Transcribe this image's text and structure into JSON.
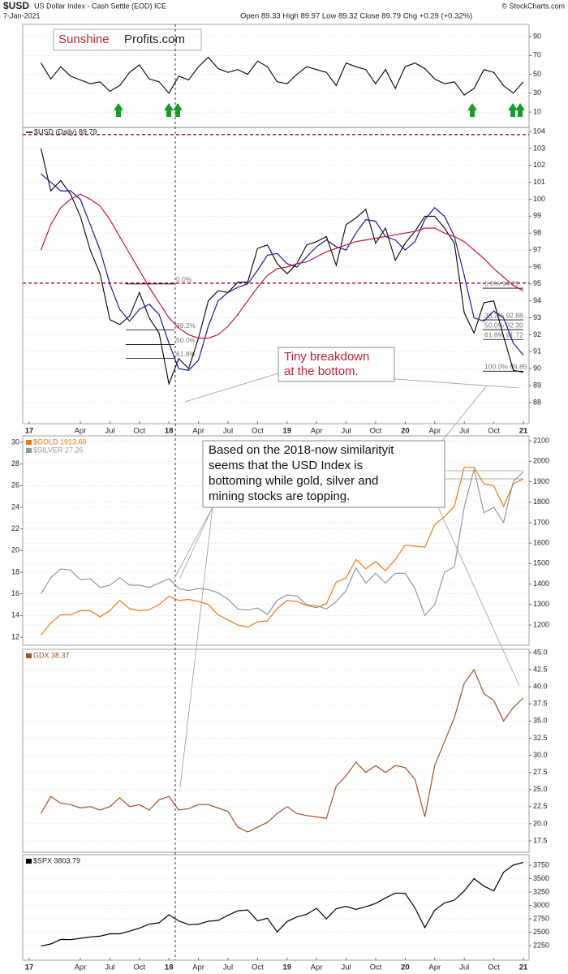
{
  "header": {
    "symbol": "$USD",
    "description": "US Dollar Index - Cash Settle (EOD) ICE",
    "date": "7-Jan-2021",
    "quote": "Open 89.33 High 89.97 Low 89.32 Close 89.79 Chg +0.29 (+0.32%)",
    "credit": "© StockCharts.com",
    "logo_a": "Sunshine",
    "logo_b": "Profits.com"
  },
  "chart_data": [
    {
      "type": "line",
      "ylim": [
        -6.3,
        102.9
      ],
      "yticks": [
        10,
        30,
        50,
        70,
        90
      ],
      "grid": true,
      "series": [
        {
          "color": "#000000",
          "values": [
            62,
            45,
            58,
            48,
            44,
            40,
            42,
            32,
            38,
            52,
            60,
            45,
            42,
            30,
            48,
            44,
            58,
            68,
            56,
            52,
            55,
            50,
            64,
            58,
            42,
            40,
            50,
            58,
            55,
            52,
            38,
            62,
            58,
            55,
            40,
            55,
            35,
            58,
            62,
            56,
            45,
            40,
            42,
            28,
            35,
            55,
            52,
            38,
            30,
            42
          ]
        }
      ]
    },
    {
      "type": "line",
      "title": "$USD (Daily) 89.79",
      "ylim": [
        86.75,
        104.24
      ],
      "yticks": [
        88,
        89,
        90,
        91,
        92,
        93,
        94,
        95,
        96,
        97,
        98,
        99,
        100,
        101,
        102,
        103,
        104
      ],
      "grid": true,
      "ref_lines": [
        103.82,
        95.05
      ],
      "ref_color": "#b0003a",
      "x_labels": [
        "17",
        "Apr",
        "Jul",
        "Oct",
        "18",
        "Apr",
        "Jul",
        "Oct",
        "19",
        "Apr",
        "Jul",
        "Oct",
        "20",
        "Apr",
        "Jul",
        "Oct",
        "21"
      ],
      "fib_left": [
        {
          "label": "0.0%",
          "level": 95.0
        },
        {
          "label": "38.2%",
          "level": 92.28
        },
        {
          "label": "50.0%",
          "level": 91.42
        },
        {
          "label": "61.8%",
          "level": 90.6
        }
      ],
      "fib_right": [
        {
          "label": "0.0% 94.75",
          "level": 94.75
        },
        {
          "label": "38.2% 92.88",
          "level": 92.88
        },
        {
          "label": "50.0% 92.30",
          "level": 92.3
        },
        {
          "label": "61.8% 91.72",
          "level": 91.72
        },
        {
          "label": "100.0% 89.85",
          "level": 89.85
        }
      ],
      "annotation": [
        "Tiny breakdown",
        "at the bottom."
      ],
      "series": [
        {
          "color": "#000000",
          "values": [
            103.0,
            100.5,
            101.1,
            100.3,
            99.0,
            97.0,
            95.6,
            92.9,
            92.6,
            93.1,
            94.5,
            93.0,
            92.1,
            89.1,
            90.6,
            90.0,
            91.8,
            94.0,
            94.6,
            94.5,
            95.1,
            95.1,
            97.1,
            97.3,
            96.2,
            95.6,
            96.2,
            97.3,
            97.5,
            97.8,
            96.1,
            98.5,
            98.9,
            99.4,
            97.4,
            98.3,
            96.4,
            97.4,
            98.1,
            99.0,
            99.0,
            98.3,
            97.4,
            93.3,
            92.1,
            93.9,
            94.0,
            91.9,
            89.9,
            89.79
          ]
        },
        {
          "color": "#1a1a9c",
          "values": [
            101.5,
            101.0,
            100.5,
            100.5,
            100.0,
            98.5,
            97.0,
            95.0,
            93.5,
            92.8,
            93.5,
            93.8,
            93.2,
            91.5,
            90.0,
            89.9,
            90.5,
            92.5,
            94.0,
            94.5,
            94.8,
            95.0,
            95.8,
            96.7,
            96.8,
            96.2,
            96.0,
            96.6,
            97.2,
            97.6,
            97.2,
            97.0,
            98.0,
            98.8,
            98.7,
            97.8,
            97.6,
            97.0,
            97.5,
            98.8,
            99.5,
            99.0,
            97.8,
            95.5,
            93.0,
            92.8,
            93.4,
            93.0,
            91.5,
            90.8
          ]
        },
        {
          "color": "#c8143c",
          "values": [
            97.0,
            98.5,
            99.5,
            100.0,
            100.3,
            100.0,
            99.6,
            98.8,
            97.8,
            96.8,
            95.8,
            94.8,
            93.9,
            93.0,
            92.4,
            92.0,
            91.8,
            91.8,
            92.0,
            92.5,
            93.2,
            94.0,
            94.8,
            95.5,
            95.9,
            96.0,
            96.2,
            96.3,
            96.6,
            96.9,
            97.1,
            97.3,
            97.5,
            97.6,
            97.7,
            97.8,
            97.9,
            98.0,
            98.1,
            98.3,
            98.3,
            98.0,
            97.8,
            97.5,
            97.0,
            96.5,
            95.9,
            95.4,
            94.9,
            94.6
          ]
        }
      ]
    },
    {
      "type": "line",
      "yaxis_side": "left",
      "ylim": [
        11.25,
        30.6
      ],
      "yticks": [
        12,
        14,
        16,
        18,
        20,
        22,
        24,
        26,
        28,
        30
      ],
      "y2lim": [
        1101,
        2124
      ],
      "y2ticks": [
        1200,
        1300,
        1400,
        1500,
        1600,
        1700,
        1800,
        1900,
        2000,
        2100
      ],
      "grid": true,
      "annotation": [
        "Based on the 2018-now similarityit",
        "seems that the USD Index is",
        "bottoming while gold, silver and",
        "mining stocks are topping."
      ],
      "series": [
        {
          "name": "$GOLD 1913.60",
          "color": "#f07810",
          "axis": "y2",
          "values": [
            1150,
            1210,
            1250,
            1250,
            1270,
            1270,
            1240,
            1270,
            1320,
            1280,
            1270,
            1275,
            1300,
            1340,
            1320,
            1325,
            1315,
            1300,
            1250,
            1225,
            1200,
            1190,
            1215,
            1220,
            1280,
            1320,
            1315,
            1295,
            1285,
            1305,
            1410,
            1430,
            1520,
            1475,
            1510,
            1465,
            1520,
            1590,
            1585,
            1580,
            1690,
            1730,
            1780,
            1970,
            1970,
            1890,
            1880,
            1780,
            1890,
            1913.6
          ]
        },
        {
          "name": "$SILVER 27.26",
          "color": "#8a9aa3",
          "values": [
            16.0,
            17.5,
            18.3,
            18.2,
            17.3,
            17.4,
            16.6,
            16.8,
            17.5,
            16.8,
            16.8,
            16.6,
            17.0,
            17.4,
            16.5,
            16.3,
            16.5,
            16.4,
            16.1,
            15.5,
            14.6,
            14.5,
            14.7,
            14.1,
            15.4,
            15.9,
            15.8,
            15.0,
            14.9,
            14.6,
            15.3,
            16.3,
            18.4,
            17.0,
            17.9,
            17.0,
            17.9,
            17.9,
            16.5,
            14.0,
            15.0,
            18.0,
            18.5,
            24.0,
            27.5,
            23.5,
            24.0,
            22.6,
            26.4,
            27.26
          ]
        }
      ]
    },
    {
      "type": "line",
      "ylim": [
        15.84,
        45.47
      ],
      "yticks": [
        {
          "value": 17.5,
          "label": "17.5"
        },
        {
          "value": 20,
          "label": "20.0"
        },
        {
          "value": 22.5,
          "label": "22.5"
        },
        {
          "value": 25,
          "label": "25.0"
        },
        {
          "value": 27.5,
          "label": "27.5"
        },
        {
          "value": 30,
          "label": "30.0"
        },
        {
          "value": 32.5,
          "label": "32.5"
        },
        {
          "value": 35,
          "label": "35.0"
        },
        {
          "value": 37.5,
          "label": "37.5"
        },
        {
          "value": 40,
          "label": "40.0"
        },
        {
          "value": 42.5,
          "label": "42.5"
        },
        {
          "value": 45,
          "label": "45.0"
        }
      ],
      "grid": true,
      "series": [
        {
          "name": "GDX 38.37",
          "color": "#a0522d",
          "values": [
            21.5,
            24.0,
            23.0,
            22.8,
            22.3,
            22.5,
            22.0,
            22.5,
            23.8,
            22.5,
            22.8,
            22.0,
            23.5,
            24.0,
            22.0,
            22.2,
            22.8,
            22.8,
            22.3,
            21.8,
            19.5,
            18.8,
            19.5,
            20.2,
            21.5,
            22.5,
            21.5,
            21.2,
            21.0,
            20.8,
            25.5,
            27.0,
            29.0,
            27.5,
            28.5,
            27.5,
            28.5,
            28.2,
            26.5,
            21.0,
            28.5,
            32.0,
            35.5,
            40.5,
            42.5,
            39.0,
            38.0,
            35.0,
            37.0,
            38.37
          ]
        }
      ]
    },
    {
      "type": "line",
      "ylim": [
        1977,
        3947
      ],
      "yticks": [
        2250,
        2500,
        2750,
        3000,
        3250,
        3500,
        3750
      ],
      "grid": true,
      "x_labels": [
        "17",
        "Apr",
        "Jul",
        "Oct",
        "18",
        "Apr",
        "Jul",
        "Oct",
        "19",
        "Apr",
        "Jul",
        "Oct",
        "20",
        "Apr",
        "Jul",
        "Oct",
        "21"
      ],
      "series": [
        {
          "name": "$SPX 3803.79",
          "color": "#000000",
          "values": [
            2240,
            2280,
            2365,
            2360,
            2385,
            2410,
            2425,
            2470,
            2470,
            2520,
            2575,
            2650,
            2675,
            2825,
            2710,
            2640,
            2650,
            2705,
            2720,
            2815,
            2900,
            2915,
            2710,
            2760,
            2505,
            2700,
            2785,
            2835,
            2945,
            2750,
            2940,
            2980,
            2925,
            2975,
            3035,
            3140,
            3230,
            3225,
            2955,
            2585,
            2910,
            3045,
            3100,
            3270,
            3500,
            3360,
            3270,
            3620,
            3755,
            3803.79
          ]
        }
      ]
    }
  ]
}
